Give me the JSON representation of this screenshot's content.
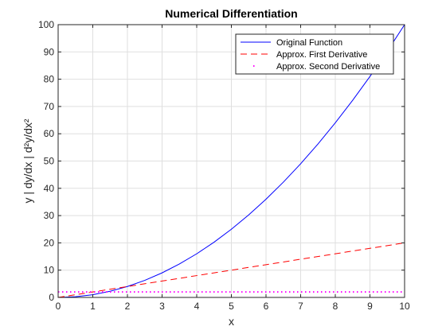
{
  "chart_data": {
    "type": "line",
    "title": "Numerical Differentiation",
    "xlabel": "x",
    "ylabel": "y | dy/dx | d²y/dx²",
    "xlim": [
      0,
      10
    ],
    "ylim": [
      0,
      100
    ],
    "xticks": [
      0,
      1,
      2,
      3,
      4,
      5,
      6,
      7,
      8,
      9,
      10
    ],
    "yticks": [
      0,
      10,
      20,
      30,
      40,
      50,
      60,
      70,
      80,
      90,
      100
    ],
    "grid": true,
    "legend_position": "top-right",
    "series": [
      {
        "name": "Original Function",
        "style": "solid",
        "color": "#0000ff",
        "x": [
          0,
          0.5,
          1,
          1.5,
          2,
          2.5,
          3,
          3.5,
          4,
          4.5,
          5,
          5.5,
          6,
          6.5,
          7,
          7.5,
          8,
          8.5,
          9,
          9.5,
          10
        ],
        "y": [
          0,
          0.25,
          1,
          2.25,
          4,
          6.25,
          9,
          12.25,
          16,
          20.25,
          25,
          30.25,
          36,
          42.25,
          49,
          56.25,
          64,
          72.25,
          81,
          90.25,
          100
        ]
      },
      {
        "name": "Approx. First Derivative",
        "style": "dashed",
        "color": "#ff0000",
        "x": [
          0,
          1,
          2,
          3,
          4,
          5,
          6,
          7,
          8,
          9,
          10
        ],
        "y": [
          0,
          2,
          4,
          6,
          8,
          10,
          12,
          14,
          16,
          18,
          20
        ]
      },
      {
        "name": "Approx. Second Derivative",
        "style": "dotted",
        "color": "#ff00ff",
        "x": [
          0,
          1,
          2,
          3,
          4,
          5,
          6,
          7,
          8,
          9,
          10
        ],
        "y": [
          2,
          2,
          2,
          2,
          2,
          2,
          2,
          2,
          2,
          2,
          2
        ]
      }
    ]
  }
}
